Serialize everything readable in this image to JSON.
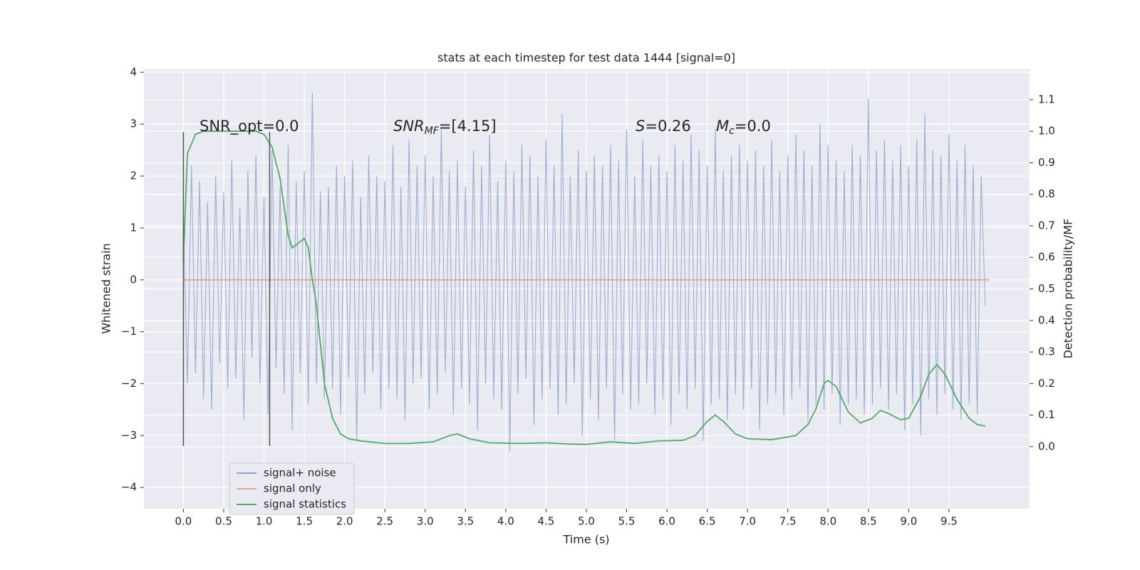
{
  "chart_data": {
    "type": "line",
    "title": "stats at each timestep for test data 1444 [signal=0]",
    "x_label": "Time (s)",
    "y_label": "Whitened strain",
    "y2_label": "Detection probability/MF",
    "xlim": [
      -0.49,
      10.5
    ],
    "ylim": [
      -4.41,
      4.06
    ],
    "y2lim": [
      -0.197,
      1.197
    ],
    "xticks": [
      {
        "value": 0,
        "label": "0.0"
      },
      0.5,
      {
        "value": 1,
        "label": "1.0"
      },
      1.5,
      {
        "value": 2,
        "label": "2.0"
      },
      2.5,
      {
        "value": 3,
        "label": "3.0"
      },
      3.5,
      {
        "value": 4,
        "label": "4.0"
      },
      4.5,
      {
        "value": 5,
        "label": "5.0"
      },
      5.5,
      {
        "value": 6,
        "label": "6.0"
      },
      6.5,
      {
        "value": 7,
        "label": "7.0"
      },
      7.5,
      {
        "value": 8,
        "label": "8.0"
      },
      8.5,
      {
        "value": 9,
        "label": "9.0"
      },
      9.5
    ],
    "yticks": [
      {
        "value": -4,
        "label": "−4"
      },
      {
        "value": -3,
        "label": "−3"
      },
      {
        "value": -2,
        "label": "−2"
      },
      {
        "value": -1,
        "label": "−1"
      },
      0,
      1,
      2,
      3,
      4
    ],
    "y2ticks": [
      {
        "value": 0,
        "label": "0.0"
      },
      0.1,
      0.2,
      0.3,
      0.4,
      0.5,
      0.6,
      0.7,
      0.8,
      0.9,
      {
        "value": 1,
        "label": "1.0"
      },
      1.1
    ],
    "grid": true,
    "legend": "lower left",
    "annotations": [
      "SNR_opt=0.0",
      {
        "base": "SNR",
        "sub": "MF",
        "rest": "=[4.15]"
      },
      {
        "base": "S",
        "sub": "",
        "rest": "=0.26"
      },
      {
        "base": "M",
        "sub": "c",
        "rest": "=0.0"
      }
    ],
    "vlines": [
      {
        "x": 0,
        "ymin": -3.2,
        "ymax": 2.85
      },
      {
        "x": 1.07,
        "ymin": -3.2,
        "ymax": 2.85
      }
    ],
    "series": [
      {
        "name": "signal+ noise",
        "color": "#8fa3cc",
        "x": [
          0,
          0.05,
          0.1,
          0.15,
          0.2,
          0.25,
          0.3,
          0.35,
          0.4,
          0.45,
          0.5,
          0.55,
          0.6,
          0.65,
          0.7,
          0.75,
          0.8,
          0.85,
          0.9,
          0.95,
          1,
          1.05,
          1.1,
          1.15,
          1.2,
          1.25,
          1.3,
          1.35,
          1.4,
          1.45,
          1.5,
          1.55,
          1.6,
          1.65,
          1.7,
          1.75,
          1.8,
          1.85,
          1.9,
          1.95,
          2,
          2.05,
          2.1,
          2.15,
          2.2,
          2.25,
          2.3,
          2.35,
          2.4,
          2.45,
          2.5,
          2.55,
          2.6,
          2.65,
          2.7,
          2.75,
          2.8,
          2.85,
          2.9,
          2.95,
          3,
          3.05,
          3.1,
          3.15,
          3.2,
          3.25,
          3.3,
          3.35,
          3.4,
          3.45,
          3.5,
          3.55,
          3.6,
          3.65,
          3.7,
          3.75,
          3.8,
          3.85,
          3.9,
          3.95,
          4,
          4.05,
          4.1,
          4.15,
          4.2,
          4.25,
          4.3,
          4.35,
          4.4,
          4.45,
          4.5,
          4.55,
          4.6,
          4.65,
          4.7,
          4.75,
          4.8,
          4.85,
          4.9,
          4.95,
          5,
          5.05,
          5.1,
          5.15,
          5.2,
          5.25,
          5.3,
          5.35,
          5.4,
          5.45,
          5.5,
          5.55,
          5.6,
          5.65,
          5.7,
          5.75,
          5.8,
          5.85,
          5.9,
          5.95,
          6,
          6.05,
          6.1,
          6.15,
          6.2,
          6.25,
          6.3,
          6.35,
          6.4,
          6.45,
          6.5,
          6.55,
          6.6,
          6.65,
          6.7,
          6.75,
          6.8,
          6.85,
          6.9,
          6.95,
          7,
          7.05,
          7.1,
          7.15,
          7.2,
          7.25,
          7.3,
          7.35,
          7.4,
          7.45,
          7.5,
          7.55,
          7.6,
          7.65,
          7.7,
          7.75,
          7.8,
          7.85,
          7.9,
          7.95,
          8,
          8.05,
          8.1,
          8.15,
          8.2,
          8.25,
          8.3,
          8.35,
          8.4,
          8.45,
          8.5,
          8.55,
          8.6,
          8.65,
          8.7,
          8.75,
          8.8,
          8.85,
          8.9,
          8.95,
          9,
          9.05,
          9.1,
          9.15,
          9.2,
          9.25,
          9.3,
          9.35,
          9.4,
          9.45,
          9.5,
          9.55,
          9.6,
          9.65,
          9.7,
          9.75,
          9.8,
          9.85,
          9.9,
          9.95
        ],
        "values": [
          1.2,
          -2.0,
          2.2,
          -1.8,
          1.9,
          -2.3,
          1.5,
          -2.5,
          2.0,
          -1.6,
          1.7,
          -2.1,
          2.3,
          -1.9,
          1.4,
          -2.7,
          2.1,
          -1.5,
          2.4,
          -2.0,
          1.6,
          -2.6,
          2.5,
          -1.7,
          1.8,
          -2.2,
          2.6,
          -2.9,
          1.9,
          -1.8,
          2.1,
          -2.4,
          3.6,
          -2.0,
          1.7,
          -2.3,
          1.8,
          -2.1,
          2.2,
          -2.6,
          2.0,
          -1.9,
          2.3,
          -3.1,
          1.6,
          -2.2,
          2.4,
          -1.8,
          2.0,
          -2.5,
          1.9,
          -2.1,
          2.6,
          -2.3,
          1.8,
          -2.7,
          2.7,
          -2.0,
          2.2,
          -1.9,
          2.4,
          -2.5,
          2.0,
          -2.2,
          2.9,
          -1.8,
          2.1,
          -2.6,
          2.3,
          -2.1,
          1.8,
          -2.4,
          2.5,
          -2.9,
          2.2,
          -2.0,
          2.8,
          -2.3,
          1.9,
          -2.5,
          2.3,
          -3.3,
          2.1,
          -2.2,
          2.6,
          -1.9,
          2.4,
          -2.8,
          2.0,
          -2.3,
          2.7,
          -2.1,
          2.2,
          -2.6,
          3.2,
          -2.4,
          2.0,
          -2.0,
          2.5,
          -3.0,
          2.1,
          -2.3,
          2.4,
          -2.7,
          2.2,
          -2.1,
          2.6,
          -3.1,
          2.3,
          -2.2,
          2.9,
          -2.5,
          2.0,
          -2.4,
          2.7,
          -2.0,
          2.2,
          -2.6,
          2.4,
          -2.3,
          2.1,
          -2.8,
          2.6,
          -2.2,
          2.3,
          -2.5,
          2.8,
          -2.1,
          2.5,
          -3.1,
          2.2,
          -2.4,
          2.9,
          -2.3,
          2.1,
          -2.7,
          2.4,
          -2.2,
          2.6,
          -2.5,
          2.3,
          -2.1,
          2.5,
          -2.9,
          2.2,
          -2.4,
          2.7,
          -2.2,
          2.1,
          -2.6,
          2.4,
          -2.3,
          2.8,
          -2.1,
          2.5,
          -2.7,
          2.2,
          -2.4,
          3.0,
          -2.5,
          2.6,
          -2.2,
          2.3,
          -2.8,
          2.1,
          -2.4,
          2.6,
          -2.3,
          2.4,
          -2.6,
          3.5,
          -2.4,
          2.5,
          -2.1,
          2.7,
          -2.5,
          2.3,
          -2.2,
          2.6,
          -2.9,
          2.2,
          -2.4,
          2.7,
          -3.0,
          3.2,
          -2.3,
          2.5,
          -2.6,
          2.4,
          -2.2,
          2.8,
          -2.5,
          2.3,
          -2.7,
          2.6,
          -2.4,
          2.2,
          -2.6,
          2.0,
          -0.5
        ]
      },
      {
        "name": "signal only",
        "color": "#e0a88a",
        "x": [
          0,
          10
        ],
        "values": [
          0,
          0
        ]
      },
      {
        "name": "signal statistics",
        "color": "#55a868",
        "axis": "y2",
        "x": [
          0,
          0.05,
          0.15,
          0.25,
          0.5,
          0.9,
          1.0,
          1.1,
          1.2,
          1.3,
          1.35,
          1.5,
          1.55,
          1.6,
          1.65,
          1.75,
          1.85,
          1.95,
          2.05,
          2.2,
          2.5,
          2.8,
          3.1,
          3.3,
          3.4,
          3.55,
          3.8,
          4.2,
          4.5,
          4.8,
          5.0,
          5.3,
          5.6,
          5.9,
          6.2,
          6.35,
          6.5,
          6.6,
          6.7,
          6.85,
          7.0,
          7.3,
          7.6,
          7.75,
          7.85,
          7.95,
          8.0,
          8.1,
          8.25,
          8.4,
          8.55,
          8.65,
          8.75,
          8.9,
          9.0,
          9.15,
          9.25,
          9.35,
          9.45,
          9.6,
          9.75,
          9.85,
          9.95
        ],
        "values": [
          0.59,
          0.93,
          0.99,
          1.0,
          1.0,
          1.0,
          0.99,
          0.95,
          0.85,
          0.67,
          0.63,
          0.66,
          0.63,
          0.53,
          0.45,
          0.2,
          0.09,
          0.04,
          0.025,
          0.018,
          0.01,
          0.01,
          0.015,
          0.035,
          0.04,
          0.025,
          0.012,
          0.01,
          0.012,
          0.008,
          0.007,
          0.015,
          0.01,
          0.018,
          0.02,
          0.035,
          0.08,
          0.1,
          0.08,
          0.04,
          0.025,
          0.022,
          0.035,
          0.07,
          0.12,
          0.2,
          0.21,
          0.19,
          0.11,
          0.075,
          0.09,
          0.115,
          0.105,
          0.085,
          0.09,
          0.16,
          0.23,
          0.26,
          0.23,
          0.15,
          0.09,
          0.07,
          0.065
        ]
      }
    ]
  }
}
